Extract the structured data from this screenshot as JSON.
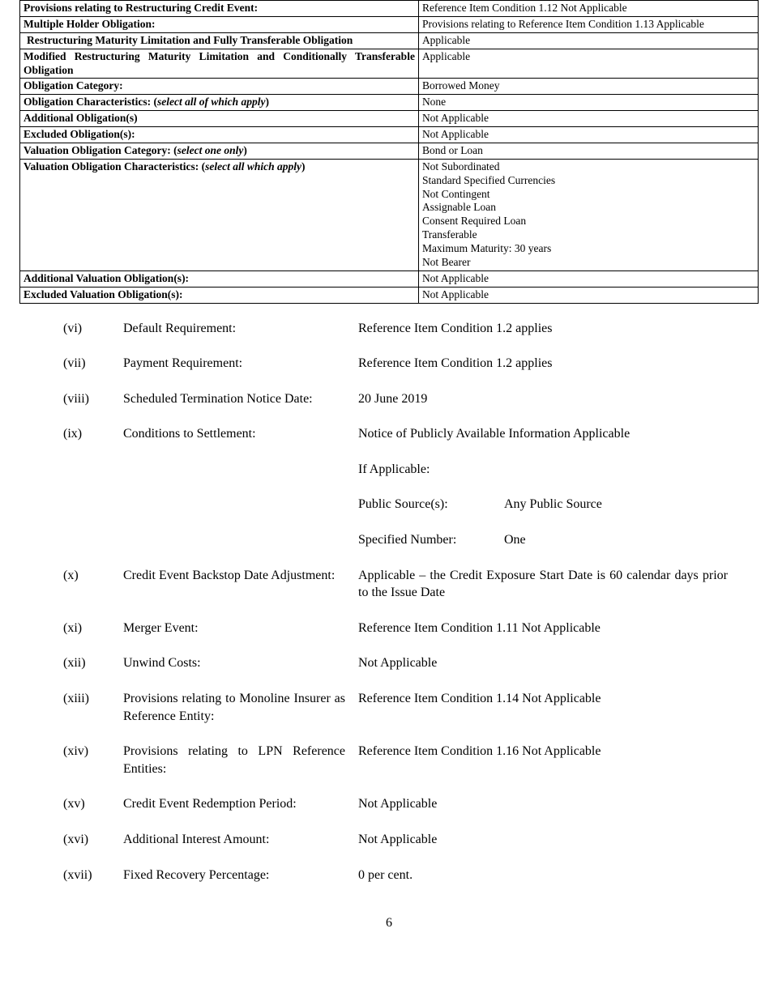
{
  "top_table": {
    "rows": [
      {
        "label_html": "Provisions relating to Restructuring Credit Event:",
        "value": "Reference Item Condition 1.12 Not Applicable"
      },
      {
        "label_html": "Multiple Holder Obligation:",
        "value": "Provisions relating to Reference Item Condition 1.13 Applicable"
      },
      {
        "label_html": "Restructuring Maturity Limitation and Fully Transferable Obligation",
        "value": "Applicable",
        "justify": true,
        "indent": true
      },
      {
        "label_html": "Modified Restructuring Maturity Limitation and Conditionally Transferable Obligation",
        "value": "Applicable",
        "justify": true
      },
      {
        "label_html": "Obligation Category:",
        "value": "Borrowed Money"
      },
      {
        "label_html": "Obligation Characteristics: (<span class=\"italic\">select all of which apply</span>)",
        "value": "None"
      },
      {
        "label_html": "Additional Obligation(s)",
        "value": "Not Applicable"
      },
      {
        "label_html": "Excluded Obligation(s):",
        "value": "Not Applicable"
      },
      {
        "label_html": "Valuation Obligation Category: (<span class=\"italic\">select one only</span>)",
        "value": "Bond or Loan"
      },
      {
        "label_html": "Valuation Obligation Characteristics: (<span class=\"italic\">select all which apply</span>)",
        "value": "Not Subordinated\nStandard Specified Currencies\nNot Contingent\nAssignable Loan\nConsent Required Loan\nTransferable\nMaximum Maturity: 30 years\nNot Bearer"
      },
      {
        "label_html": "Additional Valuation Obligation(s):",
        "value": "Not Applicable"
      },
      {
        "label_html": "Excluded Valuation Obligation(s):",
        "value": "Not Applicable"
      }
    ]
  },
  "items": {
    "vi": {
      "roman": "(vi)",
      "label": "Default Requirement:",
      "value": "Reference Item Condition 1.2 applies"
    },
    "vii": {
      "roman": "(vii)",
      "label": "Payment Requirement:",
      "value": "Reference Item Condition 1.2 applies"
    },
    "viii": {
      "roman": "(viii)",
      "label": "Scheduled Termination Notice Date:",
      "value": "20 June 2019",
      "justify_label": true
    },
    "ix": {
      "roman": "(ix)",
      "label": "Conditions to Settlement:",
      "line1": "Notice of Publicly Available Information Applicable",
      "line2": "If Applicable:",
      "kv1_key": "Public Source(s):",
      "kv1_val": "Any Public Source",
      "kv2_key": "Specified Number:",
      "kv2_val": "One"
    },
    "x": {
      "roman": "(x)",
      "label": "Credit Event Backstop Date Adjustment:",
      "value": "Applicable – the Credit Exposure Start Date is 60 calendar days prior to the Issue Date",
      "justify_label": true,
      "justify_value": true
    },
    "xi": {
      "roman": "(xi)",
      "label": "Merger Event:",
      "value": "Reference Item Condition 1.11 Not Applicable"
    },
    "xii": {
      "roman": "(xii)",
      "label": "Unwind Costs:",
      "value": "Not Applicable"
    },
    "xiii": {
      "roman": "(xiii)",
      "label": "Provisions relating to Monoline Insurer as Reference Entity:",
      "value": "Reference Item Condition 1.14 Not Applicable",
      "justify_label": true
    },
    "xiv": {
      "roman": "(xiv)",
      "label": "Provisions relating to LPN Reference Entities:",
      "value": "Reference Item Condition 1.16 Not Applicable",
      "justify_label": true
    },
    "xv": {
      "roman": "(xv)",
      "label": "Credit Event Redemption Period:",
      "value": "Not Applicable"
    },
    "xvi": {
      "roman": "(xvi)",
      "label": "Additional Interest Amount:",
      "value": "Not Applicable"
    },
    "xvii": {
      "roman": "(xvii)",
      "label": "Fixed Recovery Percentage:",
      "value": "0 per cent."
    }
  },
  "page_number": "6"
}
